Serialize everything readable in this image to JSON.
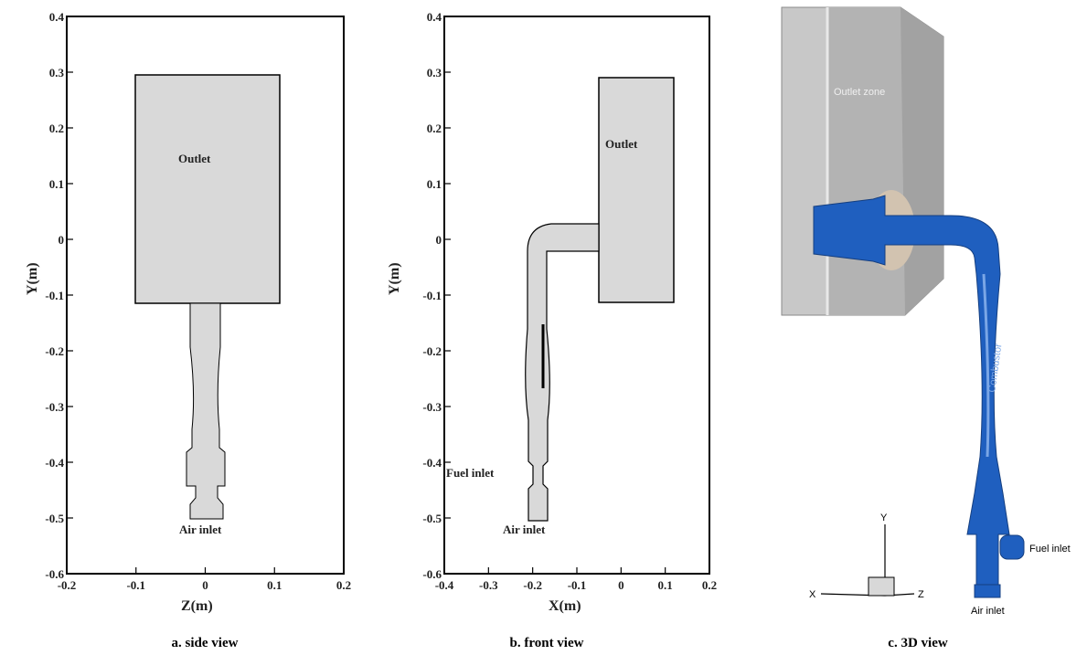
{
  "panels": [
    {
      "caption": "a. side view",
      "xlabel": "Z(m)",
      "ylabel": "Y(m)",
      "xticks": [
        "-0.2",
        "-0.1",
        "0",
        "0.1",
        "0.2"
      ],
      "yticks": [
        "0.4",
        "0.3",
        "0.2",
        "0.1",
        "0",
        "-0.1",
        "-0.2",
        "-0.3",
        "-0.4",
        "-0.5",
        "-0.6"
      ],
      "labels": {
        "outlet": "Outlet",
        "air_inlet": "Air inlet"
      }
    },
    {
      "caption": "b. front view",
      "xlabel": "X(m)",
      "ylabel": "Y(m)",
      "xticks": [
        "-0.4",
        "-0.3",
        "-0.2",
        "-0.1",
        "0",
        "0.1",
        "0.2"
      ],
      "yticks": [
        "0.4",
        "0.3",
        "0.2",
        "0.1",
        "0",
        "-0.1",
        "-0.2",
        "-0.3",
        "-0.4",
        "-0.5",
        "-0.6"
      ],
      "labels": {
        "outlet": "Outlet",
        "fuel_inlet": "Fuel inlet",
        "air_inlet": "Air inlet"
      }
    },
    {
      "caption": "c. 3D view",
      "labels": {
        "outlet_zone": "Outlet zone",
        "pipe": "Combustor",
        "fuel_inlet": "Fuel inlet",
        "air_inlet": "Air inlet"
      },
      "axes": {
        "y": "Y",
        "x": "X",
        "z": "Z"
      }
    }
  ],
  "colors": {
    "fluid_region": "#d9d9d9",
    "pipe_blue": "#1f5fbf",
    "box_grey": "#bdbdbd"
  }
}
